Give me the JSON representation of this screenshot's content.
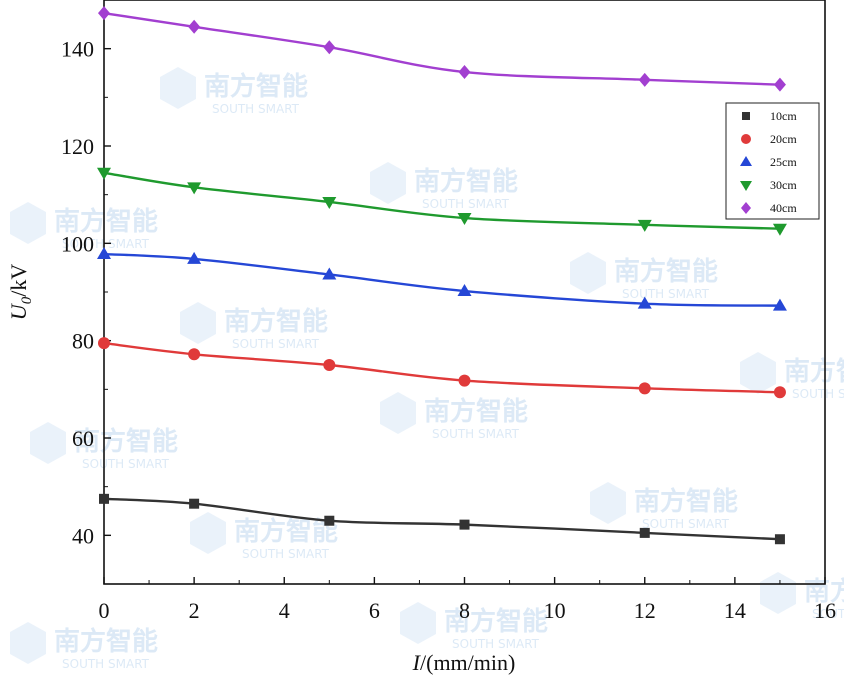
{
  "chart_data": {
    "type": "scatter",
    "title": "",
    "xlabel": {
      "var": "I",
      "unit": "/(mm/min)"
    },
    "ylabel": {
      "var": "U",
      "sub": "0",
      "unit": "/kV"
    },
    "xlim": [
      0,
      16
    ],
    "ylim": [
      30,
      150
    ],
    "xticks": [
      0,
      2,
      4,
      6,
      8,
      10,
      12,
      14,
      16
    ],
    "yticks": [
      40,
      60,
      80,
      100,
      120,
      140
    ],
    "grid": false,
    "legend_position": "top-right",
    "x": [
      0,
      2,
      5,
      8,
      12,
      15
    ],
    "series": [
      {
        "name": "10cm",
        "marker": "square",
        "color": "#333333",
        "values": [
          47.5,
          46.5,
          43.0,
          42.2,
          40.5,
          39.2
        ]
      },
      {
        "name": "20cm",
        "marker": "circle",
        "color": "#e03a3a",
        "values": [
          79.5,
          77.2,
          75.0,
          71.8,
          70.2,
          69.4
        ]
      },
      {
        "name": "25cm",
        "marker": "triangle-up",
        "color": "#2547d6",
        "values": [
          97.8,
          96.8,
          93.6,
          90.2,
          87.6,
          87.2
        ]
      },
      {
        "name": "30cm",
        "marker": "triangle-down",
        "color": "#1f9a2e",
        "values": [
          114.5,
          111.5,
          108.5,
          105.2,
          103.8,
          103.0
        ]
      },
      {
        "name": "40cm",
        "marker": "diamond",
        "color": "#a23fd0",
        "values": [
          147.3,
          144.5,
          140.3,
          135.2,
          133.6,
          132.6
        ]
      }
    ]
  },
  "watermark": {
    "brand": "南方智能",
    "sub": "SOUTH SMART"
  }
}
